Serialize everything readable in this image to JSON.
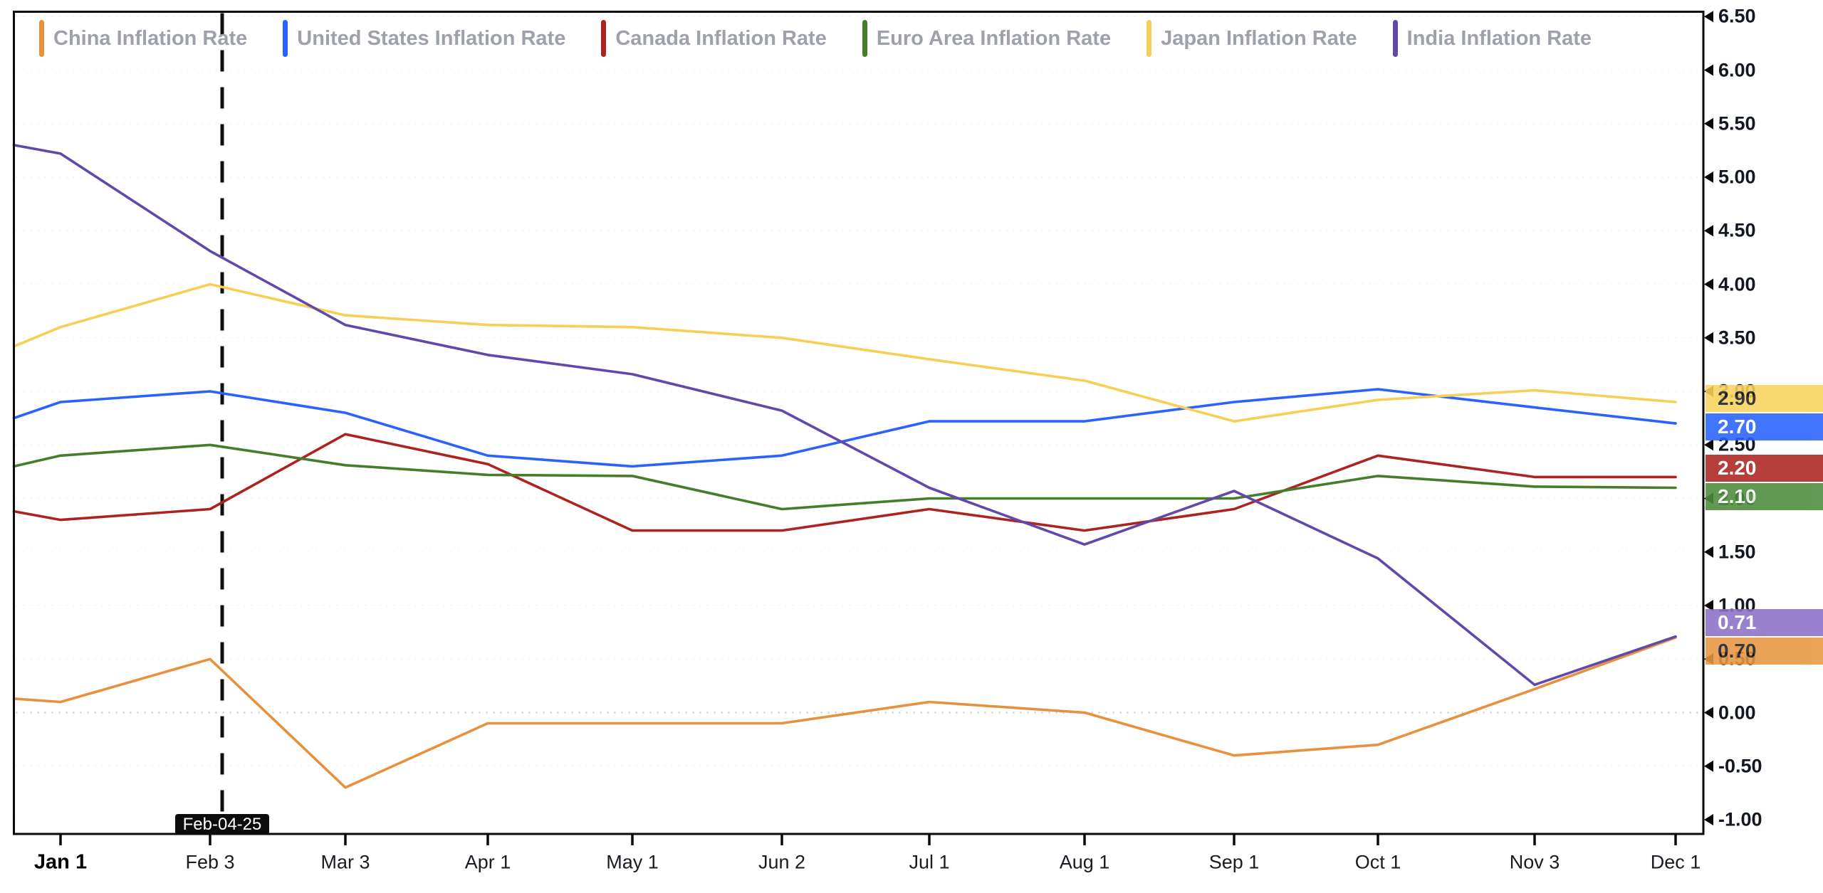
{
  "chart_data": {
    "type": "line",
    "title": "",
    "categories": [
      "Jan 1",
      "Feb 3",
      "Mar 3",
      "Apr 1",
      "May 1",
      "Jun 2",
      "Jul 1",
      "Aug 1",
      "Sep 1",
      "Oct 1",
      "Nov 3",
      "Dec 1"
    ],
    "ylim": [
      -1.0,
      6.5
    ],
    "ytick_step": 0.5,
    "grid": "faint-dotted-horizontal",
    "legend_position": "top-left",
    "zero_line_value": 0.0,
    "event_marker": {
      "label": "Feb-04-25",
      "x_category": "Feb 3"
    },
    "series": [
      {
        "name": "China Inflation Rate",
        "color": "#E8913C",
        "badge_color": "#E8973F",
        "badge_text_color": "#1C1E24",
        "pre_start_value": 0.13,
        "values": [
          0.1,
          0.5,
          -0.7,
          -0.1,
          -0.1,
          -0.1,
          0.1,
          0.0,
          -0.4,
          -0.3,
          0.22,
          0.7
        ],
        "end_label": "0.70"
      },
      {
        "name": "United States Inflation Rate",
        "color": "#2962FF",
        "badge_color": "#2962FF",
        "badge_text_color": "#FFFFFF",
        "pre_start_value": 2.75,
        "values": [
          2.9,
          3.0,
          2.8,
          2.4,
          2.3,
          2.4,
          2.72,
          2.72,
          2.9,
          3.02,
          2.85,
          2.7
        ],
        "end_label": "2.70"
      },
      {
        "name": "Canada Inflation Rate",
        "color": "#AC2420",
        "badge_color": "#AC2420",
        "badge_text_color": "#FFFFFF",
        "pre_start_value": 1.88,
        "values": [
          1.8,
          1.9,
          2.6,
          2.32,
          1.7,
          1.7,
          1.9,
          1.7,
          1.9,
          2.4,
          2.2,
          2.2
        ],
        "end_label": "2.20"
      },
      {
        "name": "Euro Area Inflation Rate",
        "color": "#457D2B",
        "badge_color": "#4C8B3C",
        "badge_text_color": "#FFFFFF",
        "pre_start_value": 2.3,
        "values": [
          2.4,
          2.5,
          2.31,
          2.22,
          2.21,
          1.9,
          2.0,
          2.0,
          2.0,
          2.21,
          2.11,
          2.1
        ],
        "end_label": "2.10"
      },
      {
        "name": "Japan Inflation Rate",
        "color": "#F7CF56",
        "badge_color": "#F8D35C",
        "badge_text_color": "#1C1E24",
        "pre_start_value": 3.42,
        "values": [
          3.6,
          4.0,
          3.71,
          3.62,
          3.6,
          3.5,
          3.3,
          3.1,
          2.72,
          2.92,
          3.01,
          2.9
        ],
        "end_label": "2.90"
      },
      {
        "name": "India Inflation Rate",
        "color": "#6248A8",
        "badge_color": "#8B70C8",
        "badge_text_color": "#FFFFFF",
        "pre_start_value": 5.3,
        "values": [
          5.22,
          4.31,
          3.62,
          3.34,
          3.16,
          2.82,
          2.1,
          1.57,
          2.07,
          1.44,
          0.26,
          0.71
        ],
        "end_label": "0.71"
      }
    ]
  },
  "y_axis_labels": [
    "6.50",
    "6.00",
    "5.50",
    "5.00",
    "4.50",
    "4.00",
    "3.50",
    "3.00",
    "2.50",
    "2.00",
    "1.50",
    "1.00",
    "0.50",
    "0.00",
    "-0.50",
    "-1.00"
  ]
}
